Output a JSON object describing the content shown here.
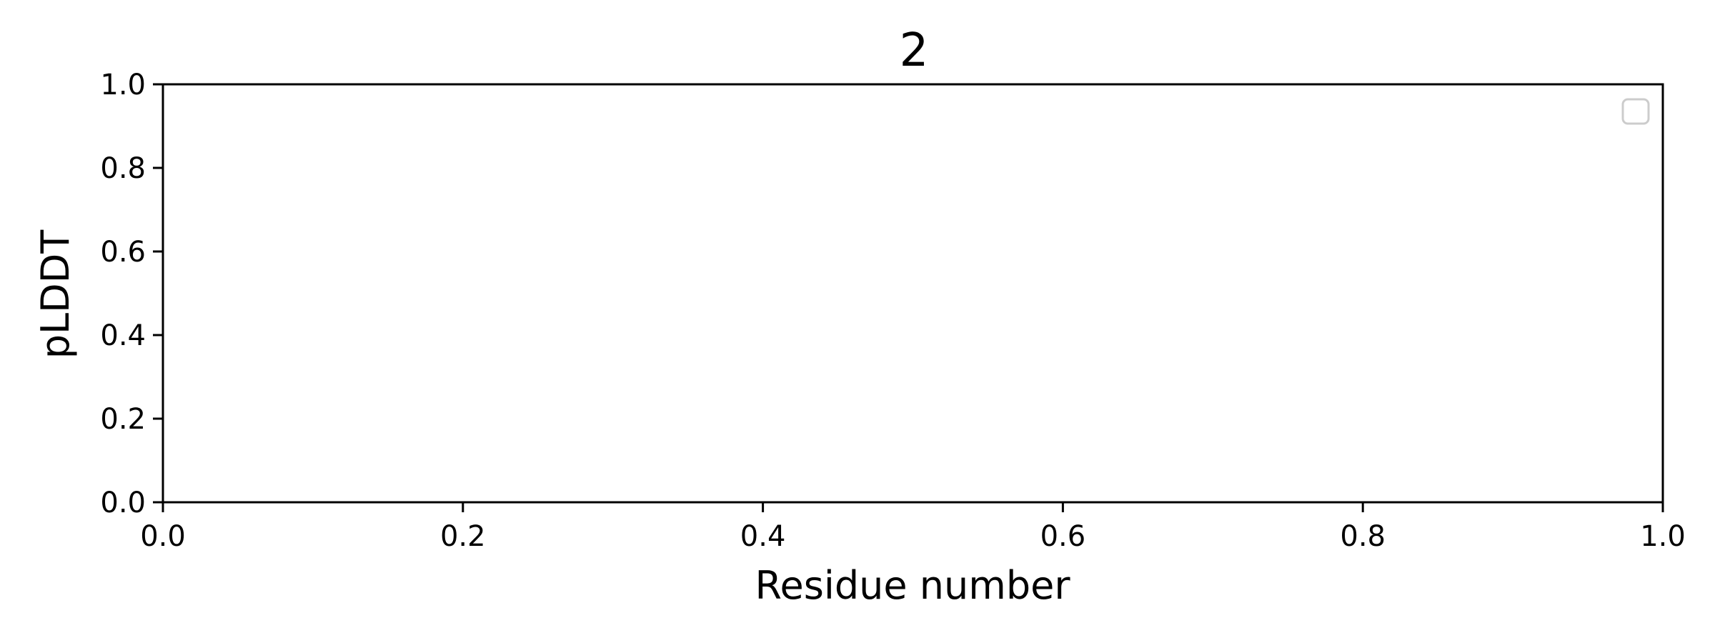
{
  "chart_data": {
    "type": "line",
    "title": "2",
    "xlabel": "Residue number",
    "ylabel": "pLDDT",
    "xlim": [
      0.0,
      1.0
    ],
    "ylim": [
      0.0,
      1.0
    ],
    "xticks": [
      "0.0",
      "0.2",
      "0.4",
      "0.6",
      "0.8",
      "1.0"
    ],
    "yticks": [
      "0.0",
      "0.2",
      "0.4",
      "0.6",
      "0.8",
      "1.0"
    ],
    "series": [],
    "grid": false,
    "legend": {
      "placement": "top-right",
      "entries": []
    }
  }
}
